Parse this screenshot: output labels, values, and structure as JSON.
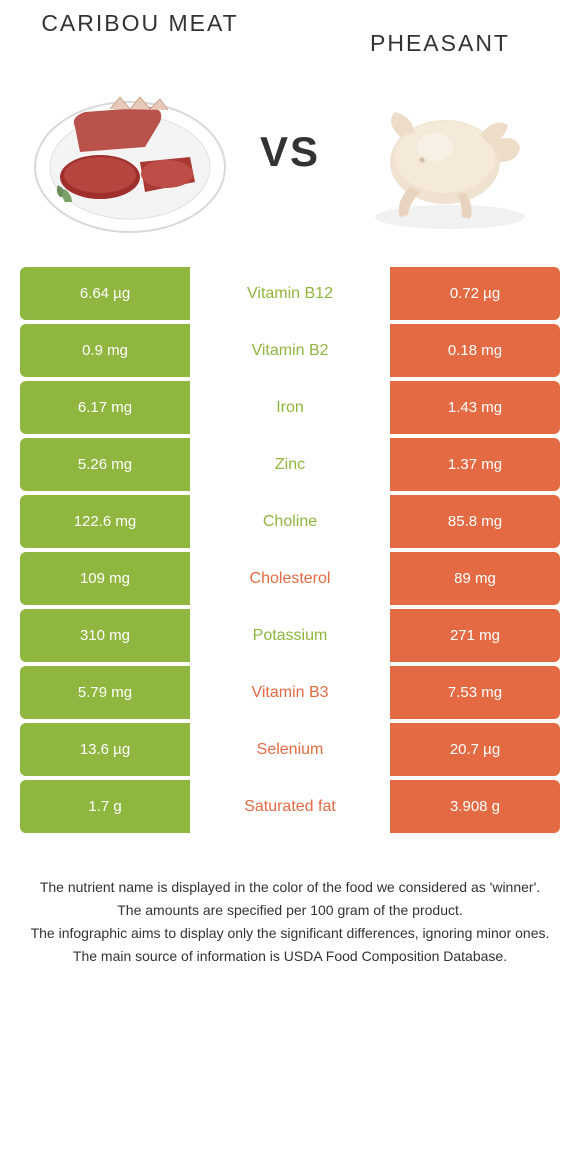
{
  "colors": {
    "left": "#8fb63f",
    "right": "#e36a42",
    "row_bg_left": "#8fb63f",
    "row_bg_right": "#e36a42",
    "text_white": "#ffffff"
  },
  "food_left": {
    "name": "CARIBOU MEAT"
  },
  "food_right": {
    "name": "PHEASANT"
  },
  "vs_label": "VS",
  "rows": [
    {
      "left": "6.64 µg",
      "label": "Vitamin B12",
      "right": "0.72 µg",
      "winner": "left"
    },
    {
      "left": "0.9 mg",
      "label": "Vitamin B2",
      "right": "0.18 mg",
      "winner": "left"
    },
    {
      "left": "6.17 mg",
      "label": "Iron",
      "right": "1.43 mg",
      "winner": "left"
    },
    {
      "left": "5.26 mg",
      "label": "Zinc",
      "right": "1.37 mg",
      "winner": "left"
    },
    {
      "left": "122.6 mg",
      "label": "Choline",
      "right": "85.8 mg",
      "winner": "left"
    },
    {
      "left": "109 mg",
      "label": "Cholesterol",
      "right": "89 mg",
      "winner": "right"
    },
    {
      "left": "310 mg",
      "label": "Potassium",
      "right": "271 mg",
      "winner": "left"
    },
    {
      "left": "5.79 mg",
      "label": "Vitamin B3",
      "right": "7.53 mg",
      "winner": "right"
    },
    {
      "left": "13.6 µg",
      "label": "Selenium",
      "right": "20.7 µg",
      "winner": "right"
    },
    {
      "left": "1.7 g",
      "label": "Saturated fat",
      "right": "3.908 g",
      "winner": "right"
    }
  ],
  "footer": {
    "line1": "The nutrient name is displayed in the color of the food we considered as 'winner'.",
    "line2": "The amounts are specified per 100 gram of the product.",
    "line3": "The infographic aims to display only the significant differences, ignoring minor ones.",
    "line4": "The main source of information is USDA Food Composition Database."
  }
}
